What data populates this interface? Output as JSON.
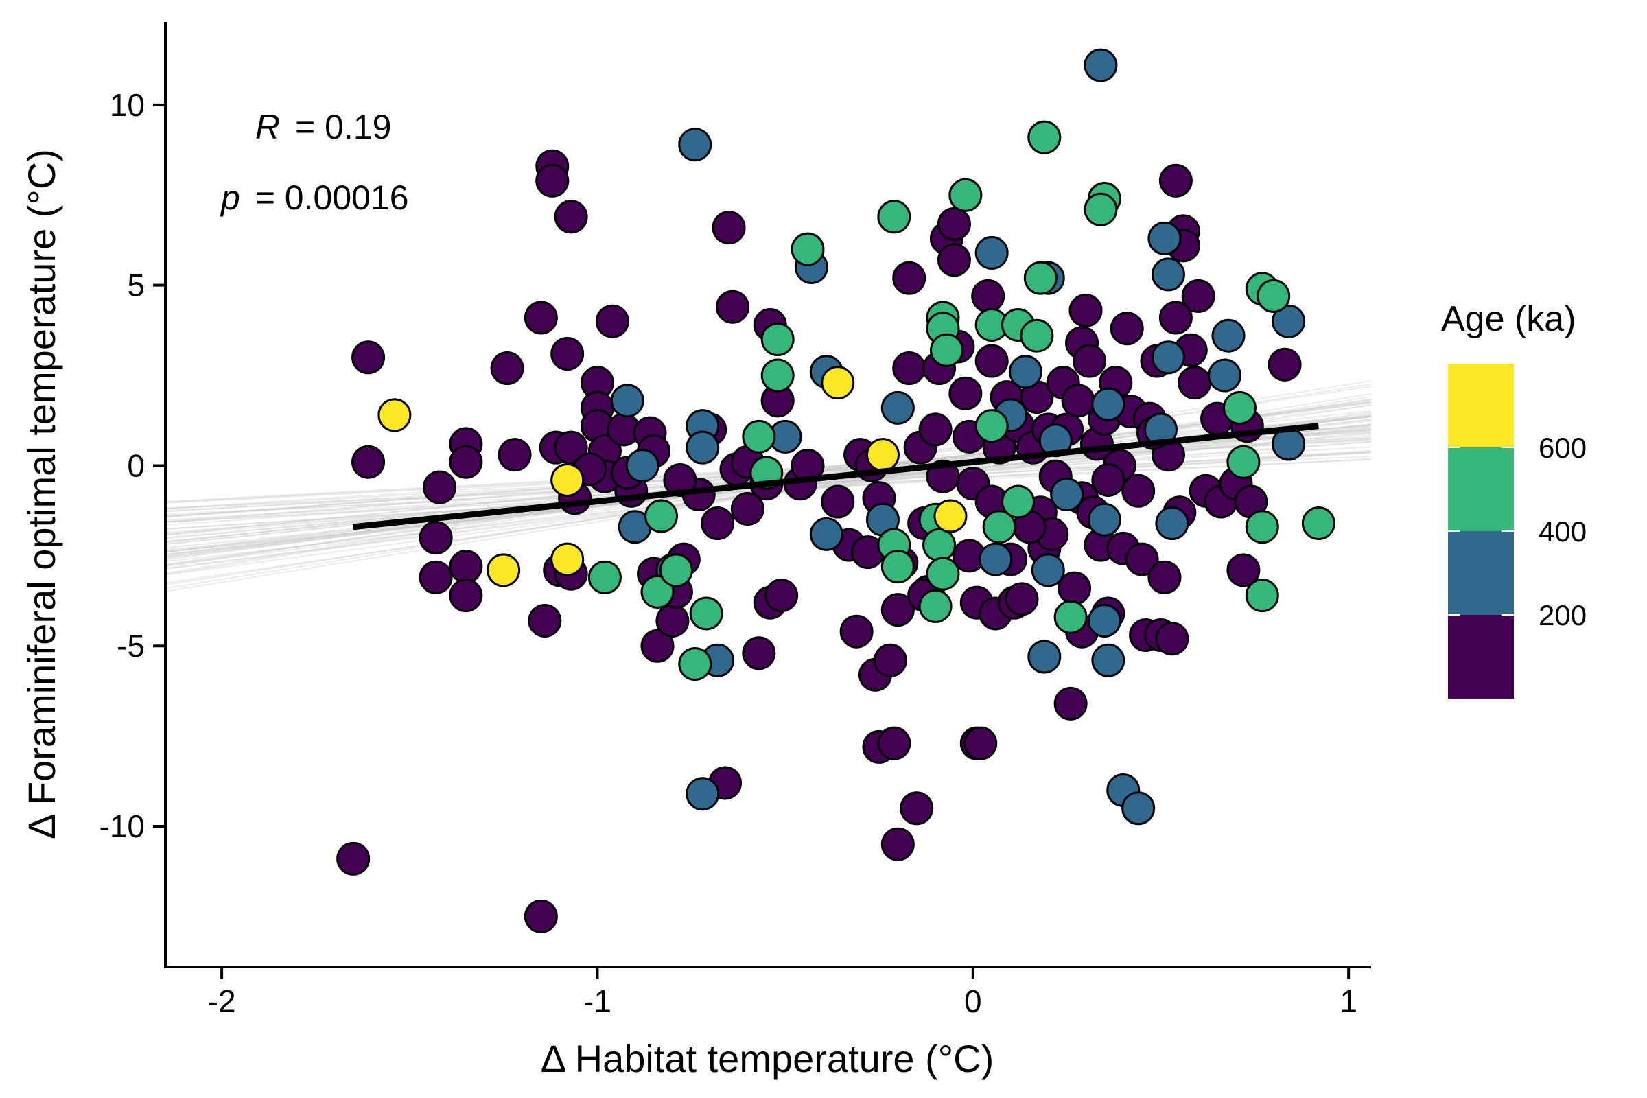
{
  "chart_data": {
    "type": "scatter",
    "xlabel": "Δ Habitat temperature (°C)",
    "ylabel": "Δ Foraminiferal optimal temperature (°C)",
    "xlim": [
      -2.15,
      1.06
    ],
    "ylim": [
      -13.9,
      12.3
    ],
    "x_ticks": [
      -2,
      -1,
      0,
      1
    ],
    "x_tick_labels": [
      "-2",
      "-1",
      "0",
      "1"
    ],
    "y_ticks": [
      -10,
      -5,
      0,
      5,
      10
    ],
    "y_tick_labels": [
      "-10",
      "-5",
      "0",
      "5",
      "10"
    ],
    "grid": false,
    "annotations": {
      "r_label": "R",
      "r_value": "= 0.19",
      "p_label": "p",
      "p_value": "= 0.00016"
    },
    "regression": {
      "x": [
        -1.65,
        0.92
      ],
      "y": [
        -1.7,
        1.1
      ],
      "color": "#000000"
    },
    "bootstrap_lines": {
      "color": "#c8c8c8",
      "count": 60
    },
    "legend": {
      "title": "Age (ka)",
      "position": "right",
      "breaks": [
        {
          "label": "600",
          "value": 600
        },
        {
          "label": "400",
          "value": 400
        },
        {
          "label": "200",
          "value": 200
        }
      ],
      "bins": [
        {
          "range": [
            600,
            800
          ],
          "color": "#fde725"
        },
        {
          "range": [
            400,
            600
          ],
          "color": "#35b779"
        },
        {
          "range": [
            200,
            400
          ],
          "color": "#31688e"
        },
        {
          "range": [
            0,
            200
          ],
          "color": "#440154"
        }
      ]
    },
    "series": [
      {
        "age_bin": "0-200",
        "color": "#440154",
        "points": [
          [
            -1.65,
            -10.9
          ],
          [
            -1.61,
            3.0
          ],
          [
            -1.61,
            0.1
          ],
          [
            -1.42,
            -0.6
          ],
          [
            -1.43,
            -2.0
          ],
          [
            -1.43,
            -3.1
          ],
          [
            -1.35,
            0.6
          ],
          [
            -1.35,
            0.1
          ],
          [
            -1.35,
            -2.8
          ],
          [
            -1.35,
            -3.6
          ],
          [
            -1.24,
            2.7
          ],
          [
            -1.22,
            0.3
          ],
          [
            -1.15,
            4.1
          ],
          [
            -1.14,
            -4.3
          ],
          [
            -1.15,
            -12.5
          ],
          [
            -1.12,
            8.3
          ],
          [
            -1.12,
            7.9
          ],
          [
            -1.11,
            0.5
          ],
          [
            -1.1,
            -2.9
          ],
          [
            -1.08,
            3.1
          ],
          [
            -1.07,
            6.9
          ],
          [
            -1.07,
            0.5
          ],
          [
            -1.06,
            -0.9
          ],
          [
            -1.07,
            -3.0
          ],
          [
            -1.0,
            2.3
          ],
          [
            -1.0,
            1.6
          ],
          [
            -1.0,
            1.1
          ],
          [
            -0.98,
            0.4
          ],
          [
            -0.98,
            -0.3
          ],
          [
            -0.96,
            4.0
          ],
          [
            -0.93,
            1.0
          ],
          [
            -0.91,
            -0.7
          ],
          [
            -0.86,
            0.9
          ],
          [
            -0.85,
            0.4
          ],
          [
            -0.85,
            -3.0
          ],
          [
            -0.84,
            -5.0
          ],
          [
            -0.8,
            -4.3
          ],
          [
            -0.79,
            -3.5
          ],
          [
            -0.77,
            -2.6
          ],
          [
            -0.73,
            -0.8
          ],
          [
            -0.7,
            1.0
          ],
          [
            -0.68,
            -1.6
          ],
          [
            -0.66,
            -8.8
          ],
          [
            -0.65,
            6.6
          ],
          [
            -0.64,
            4.4
          ],
          [
            -0.63,
            -0.1
          ],
          [
            -0.6,
            -1.2
          ],
          [
            -0.57,
            -5.2
          ],
          [
            -0.55,
            -0.5
          ],
          [
            -0.54,
            3.9
          ],
          [
            -0.54,
            -3.8
          ],
          [
            -0.51,
            -3.6
          ],
          [
            -0.52,
            1.8
          ],
          [
            -0.46,
            -0.5
          ],
          [
            -0.44,
            0.0
          ],
          [
            -0.33,
            -2.2
          ],
          [
            -0.31,
            -4.6
          ],
          [
            -0.3,
            0.3
          ],
          [
            -0.28,
            -2.4
          ],
          [
            -0.27,
            0.0
          ],
          [
            -0.26,
            -5.8
          ],
          [
            -0.25,
            -7.8
          ],
          [
            -0.22,
            -5.4
          ],
          [
            -0.21,
            -7.7
          ],
          [
            -0.2,
            -10.5
          ],
          [
            -0.2,
            -4.0
          ],
          [
            -0.19,
            -2.7
          ],
          [
            -0.17,
            5.2
          ],
          [
            -0.17,
            2.7
          ],
          [
            -0.15,
            -9.5
          ],
          [
            -0.14,
            0.5
          ],
          [
            -0.13,
            -1.6
          ],
          [
            -0.12,
            -3.5
          ],
          [
            -0.1,
            1.0
          ],
          [
            -0.09,
            2.7
          ],
          [
            -0.07,
            6.3
          ],
          [
            -0.05,
            6.7
          ],
          [
            -0.05,
            5.7
          ],
          [
            -0.04,
            3.3
          ],
          [
            -0.02,
            2.0
          ],
          [
            -0.01,
            0.8
          ],
          [
            -0.01,
            -2.5
          ],
          [
            0.0,
            -0.5
          ],
          [
            0.01,
            -3.8
          ],
          [
            0.01,
            -7.7
          ],
          [
            0.02,
            -7.7
          ],
          [
            0.04,
            4.7
          ],
          [
            0.05,
            2.9
          ],
          [
            0.05,
            -1.0
          ],
          [
            0.06,
            -4.1
          ],
          [
            0.07,
            0.5
          ],
          [
            0.09,
            1.9
          ],
          [
            0.1,
            -2.6
          ],
          [
            0.11,
            -3.8
          ],
          [
            0.12,
            1.1
          ],
          [
            0.13,
            -3.7
          ],
          [
            0.16,
            0.5
          ],
          [
            0.17,
            1.9
          ],
          [
            0.18,
            -1.3
          ],
          [
            0.19,
            -2.3
          ],
          [
            0.2,
            1.0
          ],
          [
            0.21,
            -1.9
          ],
          [
            0.22,
            -0.3
          ],
          [
            0.24,
            2.3
          ],
          [
            0.25,
            1.0
          ],
          [
            0.26,
            -6.6
          ],
          [
            0.27,
            -3.4
          ],
          [
            0.28,
            1.8
          ],
          [
            0.29,
            3.4
          ],
          [
            0.29,
            -0.9
          ],
          [
            0.29,
            -4.6
          ],
          [
            0.3,
            4.3
          ],
          [
            0.31,
            2.9
          ],
          [
            0.32,
            -1.3
          ],
          [
            0.33,
            0.6
          ],
          [
            0.34,
            -2.2
          ],
          [
            0.35,
            1.3
          ],
          [
            0.36,
            -4.1
          ],
          [
            0.38,
            2.3
          ],
          [
            0.39,
            0.0
          ],
          [
            0.4,
            -2.3
          ],
          [
            0.41,
            3.8
          ],
          [
            0.42,
            1.5
          ],
          [
            0.44,
            -0.7
          ],
          [
            0.45,
            -2.6
          ],
          [
            0.46,
            -4.7
          ],
          [
            0.47,
            1.3
          ],
          [
            0.49,
            2.9
          ],
          [
            0.5,
            -4.7
          ],
          [
            0.51,
            -3.1
          ],
          [
            0.52,
            0.3
          ],
          [
            0.53,
            -4.8
          ],
          [
            0.54,
            7.9
          ],
          [
            0.54,
            4.1
          ],
          [
            0.55,
            -1.3
          ],
          [
            0.56,
            6.5
          ],
          [
            0.56,
            6.1
          ],
          [
            0.58,
            3.2
          ],
          [
            0.59,
            2.3
          ],
          [
            0.6,
            4.7
          ],
          [
            0.62,
            -0.7
          ],
          [
            0.65,
            1.3
          ],
          [
            0.66,
            -1.0
          ],
          [
            0.7,
            -0.5
          ],
          [
            0.72,
            -2.9
          ],
          [
            0.73,
            1.1
          ],
          [
            0.74,
            -1.0
          ],
          [
            0.83,
            2.8
          ],
          [
            0.84,
            0.6
          ],
          [
            -0.13,
            -3.6
          ],
          [
            -0.25,
            -0.9
          ],
          [
            -0.08,
            -0.3
          ],
          [
            0.15,
            -1.7
          ],
          [
            0.36,
            -0.4
          ],
          [
            0.48,
            0.9
          ],
          [
            -0.36,
            -1.0
          ],
          [
            -0.6,
            0.1
          ],
          [
            -0.78,
            -0.4
          ],
          [
            -0.92,
            -0.2
          ],
          [
            -1.02,
            -0.1
          ]
        ]
      },
      {
        "age_bin": "200-400",
        "color": "#31688e",
        "points": [
          [
            0.34,
            11.1
          ],
          [
            -0.74,
            8.9
          ],
          [
            -0.43,
            5.5
          ],
          [
            -0.5,
            0.8
          ],
          [
            -0.92,
            1.8
          ],
          [
            -0.9,
            -1.7
          ],
          [
            -0.88,
            0.0
          ],
          [
            -0.8,
            -2.9
          ],
          [
            -0.72,
            1.1
          ],
          [
            -0.72,
            0.5
          ],
          [
            -0.68,
            -5.4
          ],
          [
            -0.72,
            -9.1
          ],
          [
            -0.39,
            2.6
          ],
          [
            -0.39,
            -1.9
          ],
          [
            0.05,
            5.9
          ],
          [
            0.2,
            5.2
          ],
          [
            0.51,
            6.3
          ],
          [
            0.52,
            5.3
          ],
          [
            0.52,
            3.0
          ],
          [
            0.53,
            -1.6
          ],
          [
            0.68,
            3.6
          ],
          [
            0.67,
            2.5
          ],
          [
            0.84,
            4.0
          ],
          [
            0.84,
            0.6
          ],
          [
            0.14,
            2.6
          ],
          [
            0.1,
            1.4
          ],
          [
            0.22,
            0.7
          ],
          [
            0.25,
            -0.8
          ],
          [
            0.35,
            -1.5
          ],
          [
            0.35,
            -4.3
          ],
          [
            0.36,
            -5.4
          ],
          [
            0.4,
            -9.0
          ],
          [
            0.44,
            -9.5
          ],
          [
            0.19,
            -5.3
          ],
          [
            0.2,
            -2.9
          ],
          [
            0.06,
            -2.6
          ],
          [
            -0.2,
            1.6
          ],
          [
            -0.24,
            -1.5
          ],
          [
            0.36,
            1.7
          ],
          [
            0.5,
            1.0
          ]
        ]
      },
      {
        "age_bin": "400-600",
        "color": "#35b779",
        "points": [
          [
            0.19,
            9.1
          ],
          [
            0.35,
            7.4
          ],
          [
            0.34,
            7.1
          ],
          [
            -0.21,
            6.9
          ],
          [
            -0.02,
            7.5
          ],
          [
            -0.44,
            6.0
          ],
          [
            0.18,
            5.2
          ],
          [
            0.77,
            4.9
          ],
          [
            0.8,
            4.7
          ],
          [
            -0.08,
            4.1
          ],
          [
            -0.08,
            3.8
          ],
          [
            0.05,
            3.9
          ],
          [
            0.12,
            3.9
          ],
          [
            0.17,
            3.6
          ],
          [
            -0.52,
            3.5
          ],
          [
            -0.52,
            2.5
          ],
          [
            -0.07,
            3.2
          ],
          [
            -0.57,
            0.8
          ],
          [
            -0.55,
            -0.2
          ],
          [
            -0.83,
            -1.4
          ],
          [
            -0.98,
            -3.1
          ],
          [
            -0.84,
            -3.5
          ],
          [
            -0.79,
            -2.9
          ],
          [
            -0.71,
            -4.1
          ],
          [
            -0.74,
            -5.5
          ],
          [
            -0.21,
            -2.2
          ],
          [
            -0.2,
            -2.8
          ],
          [
            -0.1,
            -1.5
          ],
          [
            -0.09,
            -2.2
          ],
          [
            -0.08,
            -3.0
          ],
          [
            -0.1,
            -3.9
          ],
          [
            0.07,
            -1.7
          ],
          [
            0.12,
            -1.0
          ],
          [
            0.26,
            -4.2
          ],
          [
            0.71,
            1.6
          ],
          [
            0.72,
            0.1
          ],
          [
            0.77,
            -1.7
          ],
          [
            0.77,
            -3.6
          ],
          [
            0.92,
            -1.6
          ],
          [
            0.05,
            1.1
          ]
        ]
      },
      {
        "age_bin": "600-800",
        "color": "#fde725",
        "points": [
          [
            -1.54,
            1.4
          ],
          [
            -1.25,
            -2.9
          ],
          [
            -1.08,
            -0.4
          ],
          [
            -1.08,
            -2.6
          ],
          [
            -0.36,
            2.3
          ],
          [
            -0.24,
            0.3
          ],
          [
            -0.06,
            -1.4
          ]
        ]
      }
    ]
  }
}
